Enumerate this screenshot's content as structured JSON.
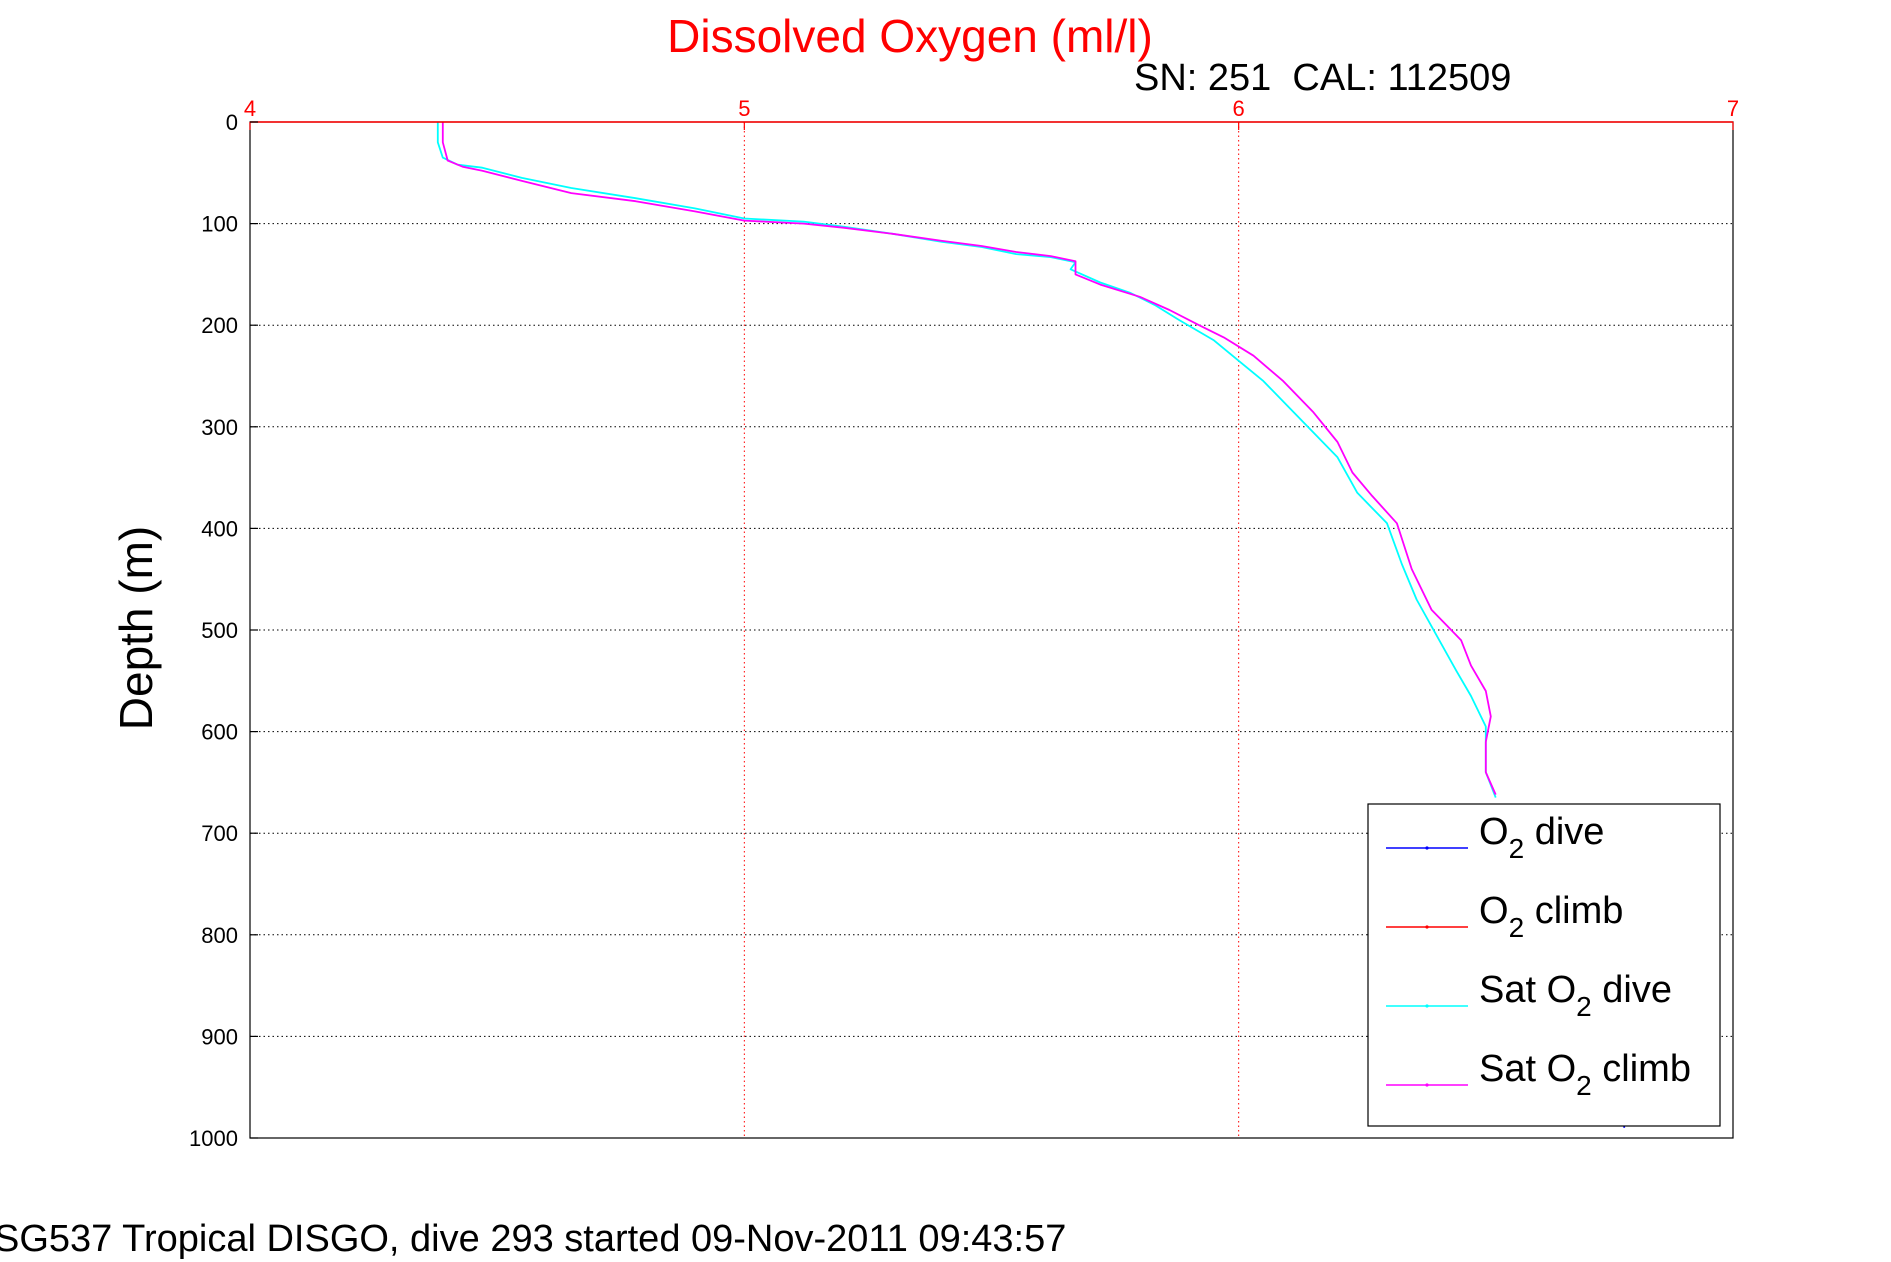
{
  "chart_data": {
    "type": "line",
    "title": "Dissolved Oxygen (ml/l)",
    "subtitle": "SN: 251  CAL: 112509",
    "footer": "SG537 Tropical DISGO, dive 293 started 09-Nov-2011 09:43:57",
    "ylabel": "Depth (m)",
    "xlim": [
      4,
      7
    ],
    "ylim": [
      0,
      1000
    ],
    "y_reversed": true,
    "x_ticks": [
      "4",
      "5",
      "6",
      "7"
    ],
    "y_ticks": [
      "0",
      "100",
      "200",
      "300",
      "400",
      "500",
      "600",
      "700",
      "800",
      "900",
      "1000"
    ],
    "grid": true,
    "legend_position": "bottom-right",
    "colors": {
      "title": "#ff0000",
      "x_axis": "#ff0000",
      "grid_x": "#ff0000",
      "grid_y": "#000000"
    },
    "legend": [
      {
        "main": "O",
        "sub": "2",
        "rest": " dive",
        "color": "#0000ff"
      },
      {
        "main": "O",
        "sub": "2",
        "rest": " climb",
        "color": "#ff0000"
      },
      {
        "main": "Sat O",
        "sub": "2",
        "rest": " dive",
        "color": "#00ffff"
      },
      {
        "main": "Sat O",
        "sub": "2",
        "rest": " climb",
        "color": "#ff00ff"
      }
    ],
    "series": [
      {
        "color": "#00ffff",
        "points": [
          [
            4.38,
            0
          ],
          [
            4.38,
            20
          ],
          [
            4.39,
            35
          ],
          [
            4.42,
            42
          ],
          [
            4.47,
            45
          ],
          [
            4.55,
            55
          ],
          [
            4.65,
            65
          ],
          [
            4.78,
            75
          ],
          [
            4.9,
            85
          ],
          [
            5.0,
            95
          ],
          [
            5.12,
            98
          ],
          [
            5.2,
            103
          ],
          [
            5.3,
            110
          ],
          [
            5.4,
            118
          ],
          [
            5.48,
            123
          ],
          [
            5.55,
            130
          ],
          [
            5.62,
            133
          ],
          [
            5.67,
            138
          ],
          [
            5.66,
            145
          ],
          [
            5.72,
            158
          ],
          [
            5.78,
            168
          ],
          [
            5.83,
            180
          ],
          [
            5.88,
            195
          ],
          [
            5.95,
            215
          ],
          [
            6.0,
            235
          ],
          [
            6.05,
            255
          ],
          [
            6.1,
            280
          ],
          [
            6.15,
            305
          ],
          [
            6.2,
            330
          ],
          [
            6.24,
            365
          ],
          [
            6.3,
            395
          ],
          [
            6.33,
            435
          ],
          [
            6.36,
            470
          ],
          [
            6.4,
            505
          ],
          [
            6.44,
            540
          ],
          [
            6.47,
            565
          ],
          [
            6.5,
            595
          ],
          [
            6.5,
            615
          ],
          [
            6.5,
            640
          ],
          [
            6.52,
            665
          ]
        ]
      },
      {
        "color": "#ff00ff",
        "points": [
          [
            4.39,
            0
          ],
          [
            4.39,
            20
          ],
          [
            4.4,
            38
          ],
          [
            4.43,
            44
          ],
          [
            4.47,
            48
          ],
          [
            4.55,
            58
          ],
          [
            4.65,
            70
          ],
          [
            4.78,
            78
          ],
          [
            4.9,
            88
          ],
          [
            5.0,
            97
          ],
          [
            5.12,
            100
          ],
          [
            5.2,
            104
          ],
          [
            5.3,
            110
          ],
          [
            5.4,
            117
          ],
          [
            5.48,
            122
          ],
          [
            5.55,
            128
          ],
          [
            5.62,
            132
          ],
          [
            5.67,
            137
          ],
          [
            5.67,
            150
          ],
          [
            5.72,
            160
          ],
          [
            5.8,
            172
          ],
          [
            5.86,
            185
          ],
          [
            5.92,
            200
          ],
          [
            5.97,
            212
          ],
          [
            6.03,
            230
          ],
          [
            6.09,
            255
          ],
          [
            6.15,
            285
          ],
          [
            6.2,
            315
          ],
          [
            6.23,
            345
          ],
          [
            6.27,
            368
          ],
          [
            6.32,
            395
          ],
          [
            6.35,
            440
          ],
          [
            6.39,
            480
          ],
          [
            6.45,
            510
          ],
          [
            6.47,
            535
          ],
          [
            6.5,
            560
          ],
          [
            6.51,
            585
          ],
          [
            6.5,
            610
          ],
          [
            6.5,
            640
          ],
          [
            6.52,
            662
          ]
        ]
      },
      {
        "color": "#0000ff",
        "points": [
          [
            6.78,
            982
          ],
          [
            6.78,
            990
          ]
        ]
      }
    ]
  }
}
